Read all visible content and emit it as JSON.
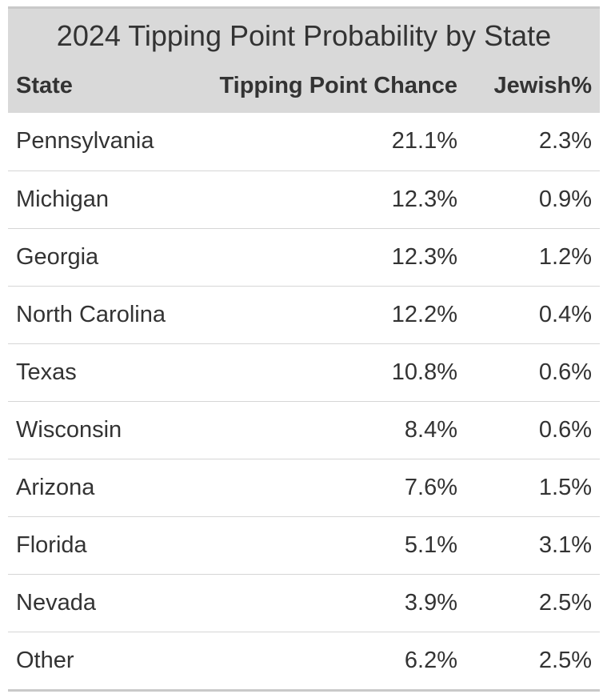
{
  "chart_data": {
    "type": "table",
    "title": "2024 Tipping Point Probability by State",
    "columns": [
      "State",
      "Tipping Point Chance",
      "Jewish%"
    ],
    "rows": [
      [
        "Pennsylvania",
        "21.1%",
        "2.3%"
      ],
      [
        "Michigan",
        "12.3%",
        "0.9%"
      ],
      [
        "Georgia",
        "12.3%",
        "1.2%"
      ],
      [
        "North Carolina",
        "12.2%",
        "0.4%"
      ],
      [
        "Texas",
        "10.8%",
        "0.6%"
      ],
      [
        "Wisconsin",
        "8.4%",
        "0.6%"
      ],
      [
        "Arizona",
        "7.6%",
        "1.5%"
      ],
      [
        "Florida",
        "5.1%",
        "3.1%"
      ],
      [
        "Nevada",
        "3.9%",
        "2.5%"
      ],
      [
        "Other",
        "6.2%",
        "2.5%"
      ]
    ]
  }
}
